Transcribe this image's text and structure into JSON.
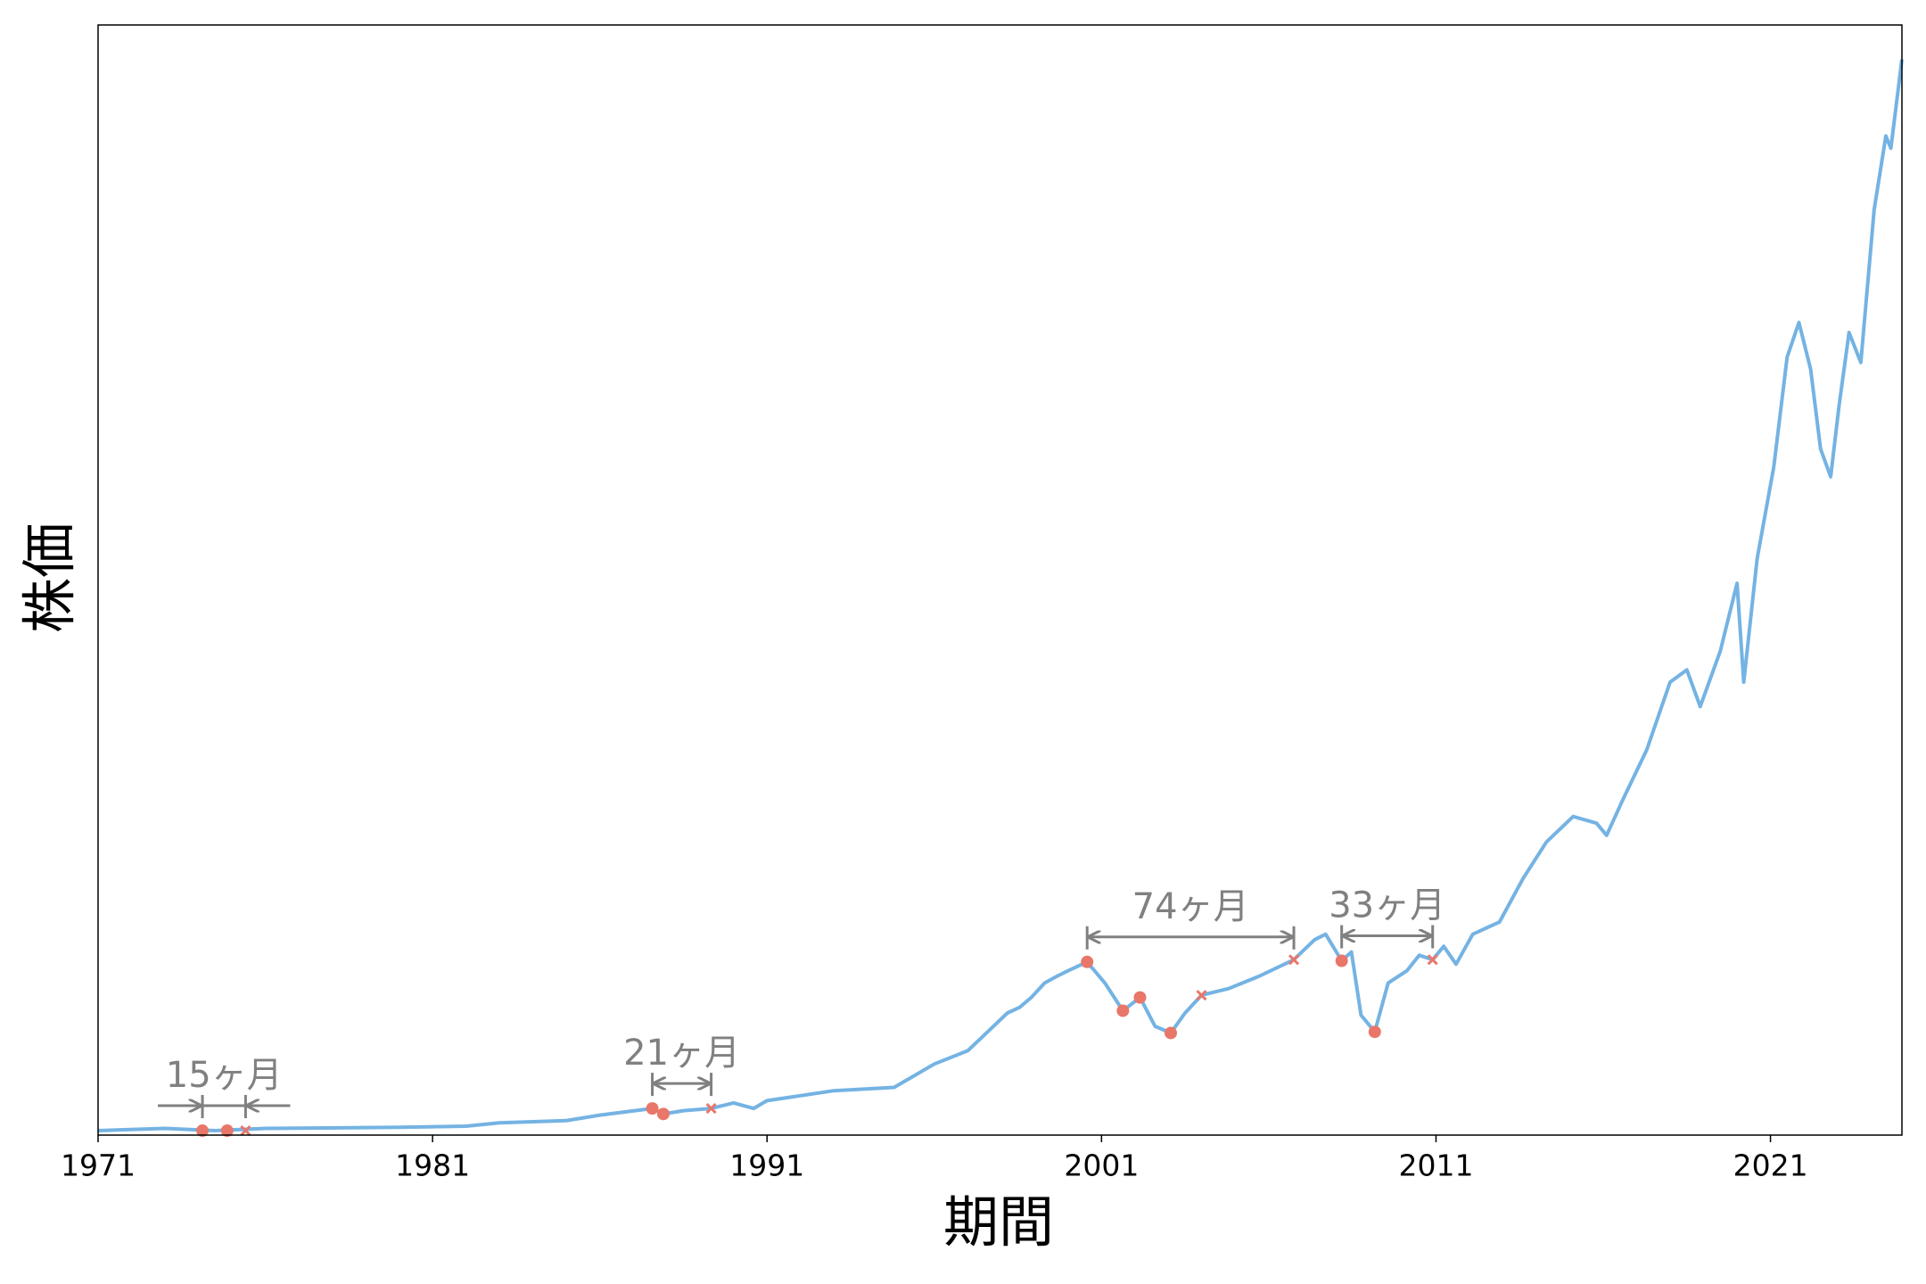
{
  "chart_data": {
    "type": "line",
    "xlabel": "期間",
    "ylabel": "株価",
    "xlim": [
      1971,
      2024.93
    ],
    "xticks": [
      1971,
      1981,
      1991,
      2001,
      2011,
      2021
    ],
    "ylim": [
      0,
      100
    ],
    "series": [
      {
        "color": "#74b3e3",
        "x": [
          1971,
          1973,
          1974.5,
          1976,
          1980,
          1982,
          1983,
          1985,
          1986,
          1987.57,
          1987.9,
          1988.5,
          1989.33,
          1990,
          1990.6,
          1991,
          1993,
          1994.8,
          1996,
          1997,
          1998.19,
          1998.55,
          1998.9,
          1999.3,
          1999.66,
          2000,
          2000.57,
          2001.1,
          2001.64,
          2002.15,
          2002.6,
          2003.07,
          2003.5,
          2003.99,
          2004.8,
          2005.7,
          2006.75,
          2007.37,
          2007.7,
          2008.18,
          2008.47,
          2008.76,
          2009.17,
          2009.57,
          2010.13,
          2010.5,
          2010.9,
          2011.23,
          2011.6,
          2012.1,
          2012.9,
          2013.6,
          2014.3,
          2015.1,
          2015.8,
          2016.1,
          2016.6,
          2017.3,
          2018.0,
          2018.5,
          2018.9,
          2019.5,
          2020.0,
          2020.2,
          2020.6,
          2021.1,
          2021.5,
          2021.85,
          2022.2,
          2022.5,
          2022.8,
          2023.05,
          2023.35,
          2023.7,
          2024.1,
          2024.45,
          2024.6,
          2024.93
        ],
        "values": [
          0.4,
          0.6,
          0.4,
          0.6,
          0.7,
          0.8,
          1.1,
          1.3,
          1.8,
          2.4,
          1.9,
          2.2,
          2.4,
          2.9,
          2.4,
          3.1,
          4.0,
          4.3,
          6.4,
          7.6,
          11.0,
          11.5,
          12.4,
          13.7,
          14.3,
          14.8,
          15.6,
          13.7,
          11.2,
          12.4,
          9.8,
          9.2,
          11.0,
          12.6,
          13.2,
          14.3,
          15.8,
          17.6,
          18.1,
          15.7,
          16.5,
          10.8,
          9.3,
          13.7,
          14.8,
          16.2,
          15.8,
          17.0,
          15.4,
          18.1,
          19.2,
          23.1,
          26.4,
          28.7,
          28.1,
          27.0,
          30.3,
          34.7,
          40.8,
          41.9,
          38.6,
          43.6,
          49.7,
          40.8,
          51.9,
          60.2,
          70.1,
          73.2,
          69.0,
          61.8,
          59.3,
          65.7,
          72.3,
          69.6,
          83.4,
          90.0,
          88.9,
          96.9
        ]
      }
    ],
    "markers": [
      {
        "marker": "circle",
        "color": "#e8776a",
        "x": [
          1974.12,
          1974.86,
          1987.57,
          1987.9,
          2000.57,
          2001.64,
          2002.15,
          2003.07,
          2008.18,
          2009.17
        ],
        "values": [
          0.4,
          0.4,
          2.4,
          1.9,
          15.6,
          11.2,
          12.4,
          9.2,
          15.7,
          9.3
        ]
      },
      {
        "marker": "x",
        "color": "#e8776a",
        "x": [
          1975.41,
          1989.33,
          2003.99,
          2006.75,
          2010.9
        ],
        "values": [
          0.4,
          2.4,
          12.6,
          15.8,
          15.8
        ]
      }
    ],
    "periods": [
      {
        "label": "15ヶ月",
        "start": 1974.12,
        "end": 1975.41,
        "level": 0.4
      },
      {
        "label": "21ヶ月",
        "start": 1987.57,
        "end": 1989.33,
        "level": 2.4
      },
      {
        "label": "74ヶ月",
        "start": 2000.57,
        "end": 2006.75,
        "level": 15.6
      },
      {
        "label": "33ヶ月",
        "start": 2008.18,
        "end": 2010.9,
        "level": 15.7
      }
    ]
  }
}
